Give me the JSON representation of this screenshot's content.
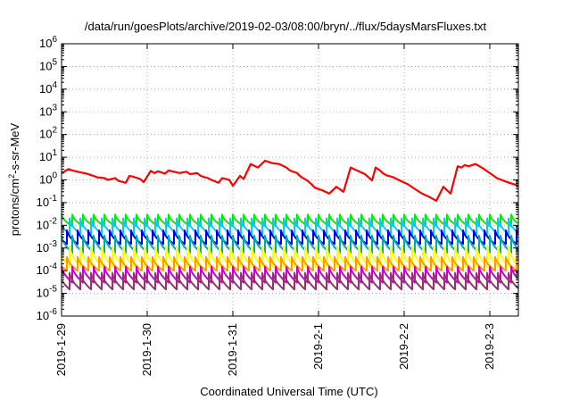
{
  "chart_data": {
    "type": "line",
    "title": "/data/run/goesPlots/archive/2019-02-03/08:00/bryn/../flux/5daysMarsFluxes.txt",
    "xlabel": "Coordinated Universal Time (UTC)",
    "ylabel_parts": {
      "base": "protons/cm",
      "sup": "2",
      "rest": "-s-sr-MeV"
    },
    "y_scale": "log",
    "ylim": [
      1e-06,
      1000000.0
    ],
    "y_ticks": [
      {
        "base": "10",
        "exp": "-6",
        "value": 1e-06
      },
      {
        "base": "10",
        "exp": "-5",
        "value": 1e-05
      },
      {
        "base": "10",
        "exp": "-4",
        "value": 0.0001
      },
      {
        "base": "10",
        "exp": "-3",
        "value": 0.001
      },
      {
        "base": "10",
        "exp": "-2",
        "value": 0.01
      },
      {
        "base": "10",
        "exp": "-1",
        "value": 0.1
      },
      {
        "base": "10",
        "exp": "0",
        "value": 1
      },
      {
        "base": "10",
        "exp": "1",
        "value": 10
      },
      {
        "base": "10",
        "exp": "2",
        "value": 100
      },
      {
        "base": "10",
        "exp": "3",
        "value": 1000
      },
      {
        "base": "10",
        "exp": "4",
        "value": 10000
      },
      {
        "base": "10",
        "exp": "5",
        "value": 100000
      },
      {
        "base": "10",
        "exp": "6",
        "value": 1000000
      }
    ],
    "xlim": [
      "2019-01-29T00:00",
      "2019-02-03T08:00"
    ],
    "x_ticks": [
      "2019-1-29",
      "2019-1-30",
      "2019-1-31",
      "2019-2-1",
      "2019-2-2",
      "2019-2-3"
    ],
    "x_tick_values": [
      "2019-01-29T00:00",
      "2019-01-30T00:00",
      "2019-01-31T00:00",
      "2019-02-01T00:00",
      "2019-02-02T00:00",
      "2019-02-03T00:00"
    ],
    "grid": true,
    "legend": "none",
    "series": [
      {
        "color": "#ff0000",
        "x": [
          "2019-01-29T00:00",
          "2019-01-29T02:00",
          "2019-01-29T03:00",
          "2019-01-29T05:00",
          "2019-01-29T07:00",
          "2019-01-29T09:00",
          "2019-01-29T10:00",
          "2019-01-29T12:00",
          "2019-01-29T13:00",
          "2019-01-29T15:00",
          "2019-01-29T16:00",
          "2019-01-29T18:00",
          "2019-01-29T19:00",
          "2019-01-29T20:00",
          "2019-01-29T22:00",
          "2019-01-29T23:00",
          "2019-01-30T01:00",
          "2019-01-30T02:00",
          "2019-01-30T03:00",
          "2019-01-30T05:00",
          "2019-01-30T06:00",
          "2019-01-30T08:00",
          "2019-01-30T09:00",
          "2019-01-30T11:00",
          "2019-01-30T12:00",
          "2019-01-30T14:00",
          "2019-01-30T15:00",
          "2019-01-30T17:00",
          "2019-01-30T18:00",
          "2019-01-30T20:00",
          "2019-01-30T21:00",
          "2019-01-30T23:00",
          "2019-01-31T00:00",
          "2019-01-31T02:00",
          "2019-01-31T03:00",
          "2019-01-31T05:00",
          "2019-01-31T07:00",
          "2019-01-31T09:00",
          "2019-01-31T11:00",
          "2019-01-31T13:00",
          "2019-01-31T15:00",
          "2019-01-31T16:00",
          "2019-01-31T18:00",
          "2019-01-31T19:00",
          "2019-01-31T21:00",
          "2019-01-31T22:00",
          "2019-01-31T23:00",
          "2019-02-01T01:00",
          "2019-02-01T03:00",
          "2019-02-01T05:00",
          "2019-02-01T07:00",
          "2019-02-01T09:00",
          "2019-02-01T11:00",
          "2019-02-01T13:00",
          "2019-02-01T15:00",
          "2019-02-01T16:00",
          "2019-02-01T17:00",
          "2019-02-01T18:00",
          "2019-02-01T19:00",
          "2019-02-01T21:00",
          "2019-02-01T23:00",
          "2019-02-02T01:00",
          "2019-02-02T03:00",
          "2019-02-02T05:00",
          "2019-02-02T07:00",
          "2019-02-02T09:00",
          "2019-02-02T11:00",
          "2019-02-02T13:00",
          "2019-02-02T15:00",
          "2019-02-02T16:00",
          "2019-02-02T17:00",
          "2019-02-02T18:00",
          "2019-02-02T20:00",
          "2019-02-02T22:00",
          "2019-02-03T00:00",
          "2019-02-03T02:00",
          "2019-02-03T04:00",
          "2019-02-03T06:00",
          "2019-02-03T08:00"
        ],
        "values": [
          2.0,
          3.0,
          2.6,
          2.2,
          1.9,
          1.5,
          1.3,
          1.2,
          1.0,
          1.2,
          0.9,
          0.75,
          1.5,
          1.4,
          1.1,
          0.8,
          2.5,
          2.0,
          2.4,
          1.9,
          2.6,
          2.2,
          2.0,
          2.3,
          1.8,
          2.0,
          1.5,
          1.2,
          1.0,
          0.75,
          1.2,
          1.0,
          0.55,
          1.5,
          1.1,
          5.0,
          3.5,
          7.0,
          5.5,
          5.0,
          3.5,
          2.6,
          2.0,
          1.4,
          0.9,
          0.65,
          0.45,
          0.35,
          0.25,
          0.5,
          0.3,
          3.5,
          2.5,
          1.8,
          0.95,
          3.5,
          2.8,
          2.0,
          1.6,
          1.3,
          0.9,
          0.65,
          0.4,
          0.25,
          0.18,
          0.12,
          0.5,
          0.25,
          4.0,
          3.5,
          4.5,
          4.0,
          5.0,
          3.3,
          2.0,
          1.2,
          0.9,
          0.7,
          0.55
        ]
      },
      {
        "color": "#00ee00",
        "y_range": [
          0.009,
          0.03
        ]
      },
      {
        "color": "#00ccff",
        "y_range": [
          0.004,
          0.02
        ]
      },
      {
        "color": "#0000ee",
        "y_range": [
          0.0015,
          0.006
        ]
      },
      {
        "color": "#00aaaa",
        "y_range": [
          0.0006,
          0.0035
        ]
      },
      {
        "color": "#ffff00",
        "y_range": [
          0.00015,
          0.0012
        ]
      },
      {
        "color": "#ff9900",
        "y_range": [
          0.0001,
          0.0004
        ]
      },
      {
        "color": "#cc00cc",
        "y_range": [
          3e-05,
          0.00015
        ]
      },
      {
        "color": "#993366",
        "y_range": [
          1.5e-05,
          8e-05
        ]
      }
    ]
  }
}
